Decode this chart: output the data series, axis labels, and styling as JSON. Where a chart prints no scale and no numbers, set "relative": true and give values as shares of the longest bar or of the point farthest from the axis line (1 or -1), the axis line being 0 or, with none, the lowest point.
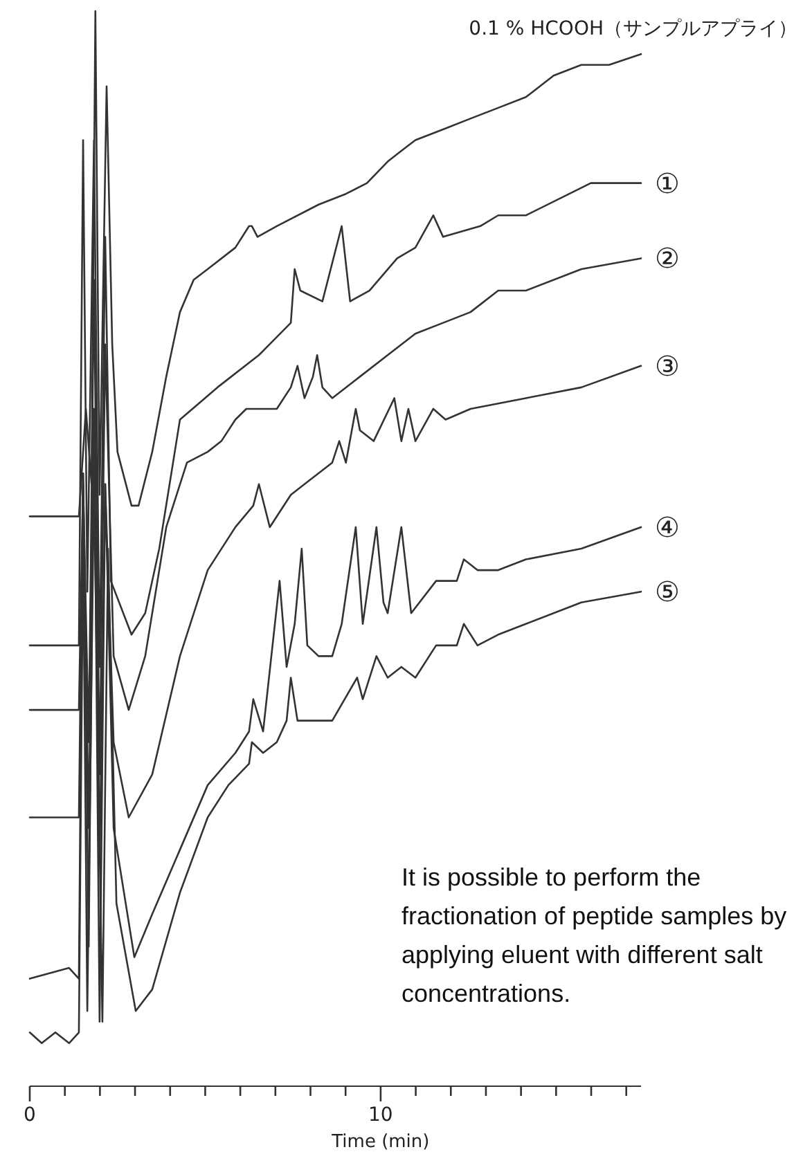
{
  "chart_data": {
    "type": "line",
    "relative": true,
    "xlabel": "Time (min)",
    "xlim": [
      0,
      17.42
    ],
    "xticks": [
      0,
      {
        "value": 1,
        "label": null
      },
      {
        "value": 2,
        "label": null
      },
      {
        "value": 3,
        "label": null
      },
      {
        "value": 4,
        "label": null
      },
      {
        "value": 5,
        "label": null
      },
      {
        "value": 6,
        "label": null
      },
      {
        "value": 7,
        "label": null
      },
      {
        "value": 8,
        "label": null
      },
      {
        "value": 9,
        "label": null
      },
      10,
      {
        "value": 11,
        "label": null
      },
      {
        "value": 12,
        "label": null
      },
      {
        "value": 13,
        "label": null
      },
      {
        "value": 14,
        "label": null
      },
      {
        "value": 15,
        "label": null
      },
      {
        "value": 16,
        "label": null
      },
      {
        "value": 17,
        "label": null
      }
    ],
    "tick_labels": "x",
    "marker": "none",
    "line_style": "solid",
    "series": [
      {
        "name": "0.1 % HCOOH（サンプルアプライ）",
        "color": "#333333",
        "x": [
          0,
          0.73,
          1.12,
          1.4,
          1.6,
          1.76,
          1.87,
          1.99,
          2.19,
          2.35,
          2.5,
          2.9,
          3.1,
          3.49,
          3.89,
          4.28,
          4.67,
          5.07,
          5.86,
          6.25,
          6.33,
          6.49,
          7.04,
          8.23,
          9.01,
          9.61,
          10.2,
          10.59,
          10.99,
          11.78,
          12.56,
          13.35,
          14.14,
          14.93,
          15.72,
          16.51,
          17.42
        ],
        "values": [
          0.53,
          0.53,
          0.53,
          0.53,
          0.63,
          0.56,
          1.0,
          0.55,
          0.93,
          0.69,
          0.59,
          0.54,
          0.54,
          0.59,
          0.66,
          0.72,
          0.75,
          0.76,
          0.78,
          0.8,
          0.8,
          0.79,
          0.8,
          0.82,
          0.83,
          0.84,
          0.86,
          0.87,
          0.88,
          0.89,
          0.9,
          0.91,
          0.92,
          0.94,
          0.95,
          0.95,
          0.96
        ]
      },
      {
        "name": "①",
        "color": "#333333",
        "x": [
          0,
          1.12,
          1.4,
          1.52,
          1.64,
          1.83,
          1.99,
          2.15,
          2.31,
          2.9,
          3.29,
          3.69,
          4.28,
          5.35,
          6.53,
          7.44,
          7.55,
          7.71,
          8.34,
          8.89,
          9.13,
          9.68,
          10.47,
          10.99,
          11.5,
          11.78,
          12.84,
          13.35,
          14.14,
          15.99,
          17.42
        ],
        "values": [
          0.41,
          0.41,
          0.41,
          0.88,
          0.46,
          0.88,
          0.39,
          0.79,
          0.47,
          0.42,
          0.44,
          0.5,
          0.62,
          0.65,
          0.68,
          0.71,
          0.76,
          0.74,
          0.73,
          0.8,
          0.73,
          0.74,
          0.77,
          0.78,
          0.81,
          0.79,
          0.8,
          0.81,
          0.81,
          0.84,
          0.84
        ]
      },
      {
        "name": "②",
        "color": "#333333",
        "x": [
          0,
          1.12,
          1.4,
          1.52,
          1.68,
          1.83,
          1.99,
          2.15,
          2.39,
          2.82,
          3.29,
          3.89,
          4.48,
          5.07,
          5.46,
          5.86,
          6.17,
          6.37,
          6.49,
          7.04,
          7.44,
          7.63,
          7.83,
          8.07,
          8.19,
          8.34,
          8.62,
          9.41,
          10.2,
          10.99,
          11.78,
          12.56,
          13.35,
          14.14,
          15.72,
          17.42
        ],
        "values": [
          0.35,
          0.35,
          0.35,
          0.56,
          0.32,
          0.75,
          0.29,
          0.69,
          0.4,
          0.35,
          0.4,
          0.52,
          0.58,
          0.59,
          0.6,
          0.62,
          0.63,
          0.63,
          0.63,
          0.63,
          0.65,
          0.67,
          0.64,
          0.66,
          0.68,
          0.65,
          0.64,
          0.66,
          0.68,
          0.7,
          0.71,
          0.72,
          0.74,
          0.74,
          0.76,
          0.77
        ]
      },
      {
        "name": "③",
        "color": "#333333",
        "x": [
          0,
          1.12,
          1.4,
          1.52,
          1.68,
          1.83,
          1.99,
          2.15,
          2.39,
          2.82,
          3.49,
          4.28,
          5.07,
          5.86,
          6.37,
          6.53,
          6.84,
          7.44,
          7.83,
          8.62,
          8.82,
          9.01,
          9.29,
          9.41,
          9.8,
          10.39,
          10.59,
          10.79,
          10.99,
          11.5,
          11.85,
          12.56,
          14.14,
          15.72,
          17.42
        ],
        "values": [
          0.25,
          0.25,
          0.25,
          0.57,
          0.24,
          0.63,
          0.21,
          0.56,
          0.32,
          0.25,
          0.29,
          0.4,
          0.48,
          0.52,
          0.54,
          0.56,
          0.52,
          0.55,
          0.56,
          0.58,
          0.6,
          0.58,
          0.63,
          0.61,
          0.6,
          0.64,
          0.6,
          0.63,
          0.6,
          0.63,
          0.62,
          0.63,
          0.64,
          0.65,
          0.67
        ]
      },
      {
        "name": "④",
        "color": "#333333",
        "x": [
          0,
          1.12,
          1.4,
          1.52,
          1.68,
          1.83,
          1.99,
          2.15,
          2.39,
          2.98,
          3.49,
          4.28,
          5.07,
          5.86,
          6.25,
          6.37,
          6.65,
          7.12,
          7.32,
          7.55,
          7.75,
          7.91,
          8.23,
          8.62,
          8.89,
          9.29,
          9.49,
          9.88,
          10.08,
          10.2,
          10.59,
          10.87,
          11.58,
          12.17,
          12.37,
          12.76,
          13.35,
          14.14,
          15.72,
          17.42
        ],
        "values": [
          0.1,
          0.11,
          0.1,
          0.57,
          0.13,
          0.63,
          0.06,
          0.56,
          0.24,
          0.12,
          0.16,
          0.22,
          0.28,
          0.31,
          0.33,
          0.36,
          0.33,
          0.47,
          0.39,
          0.43,
          0.5,
          0.41,
          0.4,
          0.4,
          0.43,
          0.52,
          0.43,
          0.52,
          0.45,
          0.44,
          0.52,
          0.44,
          0.47,
          0.47,
          0.49,
          0.48,
          0.48,
          0.49,
          0.5,
          0.52
        ]
      },
      {
        "name": "⑤",
        "color": "#333333",
        "x": [
          0,
          0.34,
          0.73,
          1.12,
          1.4,
          1.52,
          1.64,
          1.83,
          2.07,
          2.23,
          2.47,
          3.02,
          3.49,
          4.28,
          5.07,
          5.66,
          6.25,
          6.33,
          6.65,
          7.04,
          7.32,
          7.44,
          7.63,
          8.03,
          8.62,
          9.33,
          9.49,
          9.88,
          10.2,
          10.59,
          10.99,
          11.58,
          12.17,
          12.37,
          12.76,
          13.35,
          14.14,
          15.72,
          17.42
        ],
        "values": [
          0.05,
          0.04,
          0.05,
          0.04,
          0.05,
          0.5,
          0.07,
          0.56,
          0.06,
          0.5,
          0.17,
          0.07,
          0.09,
          0.18,
          0.25,
          0.28,
          0.3,
          0.32,
          0.31,
          0.32,
          0.34,
          0.38,
          0.34,
          0.34,
          0.34,
          0.38,
          0.36,
          0.4,
          0.38,
          0.39,
          0.38,
          0.41,
          0.41,
          0.43,
          0.41,
          0.42,
          0.43,
          0.45,
          0.46
        ]
      }
    ],
    "annotations": [
      "It is possible to perform the fractionation of peptide samples by applying eluent with different salt concentrations."
    ]
  }
}
